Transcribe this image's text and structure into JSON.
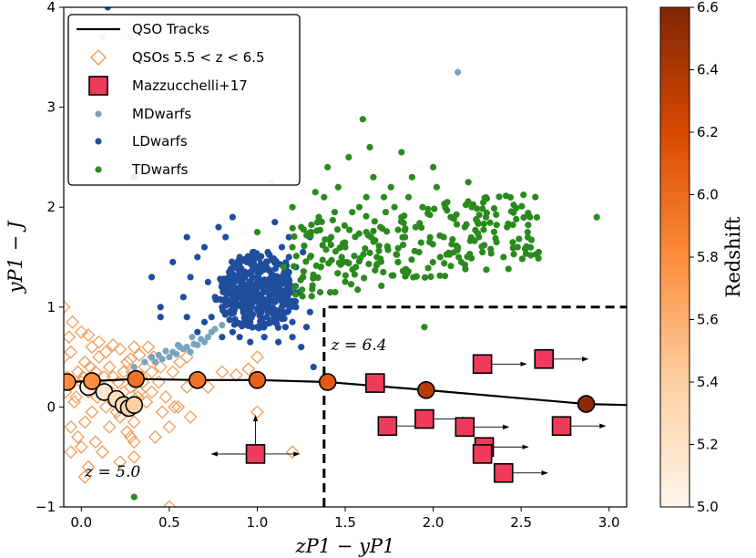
{
  "chart_data": {
    "type": "scatter",
    "xlabel": "zP1 − yP1",
    "ylabel": "yP1 − J",
    "xlim": [
      -0.1,
      3.1
    ],
    "ylim": [
      -1,
      4
    ],
    "x_ticks": [
      "0.0",
      "0.5",
      "1.0",
      "1.5",
      "2.0",
      "2.5",
      "3.0"
    ],
    "y_ticks": [
      "−1",
      "0",
      "1",
      "2",
      "3",
      "4"
    ],
    "legend": {
      "placement": "top-left",
      "entries": [
        {
          "label": "QSO Tracks",
          "marker": "line"
        },
        {
          "label": "QSOs 5.5 < z < 6.5",
          "marker": "open-diamond"
        },
        {
          "label": "Mazzucchelli+17",
          "marker": "square"
        },
        {
          "label": "MDwarfs",
          "marker": "dot"
        },
        {
          "label": "LDwarfs",
          "marker": "dot"
        },
        {
          "label": "TDwarfs",
          "marker": "dot"
        }
      ]
    },
    "colorbar": {
      "label": "Redshift",
      "range": [
        5.0,
        6.6
      ],
      "ticks": [
        "5.0",
        "5.2",
        "5.4",
        "5.6",
        "5.8",
        "6.0",
        "6.2",
        "6.4",
        "6.6"
      ]
    },
    "annotations": [
      {
        "text": "z = 6.4",
        "x": 1.42,
        "y": 0.57
      },
      {
        "text": "z = 5.0",
        "x": 0.02,
        "y": -0.7
      }
    ],
    "selection_box": {
      "x0": 1.38,
      "y_top": 1.0
    },
    "qso_track": [
      {
        "x": -0.08,
        "y": 0.25,
        "z": 5.8
      },
      {
        "x": 0.06,
        "y": 0.26,
        "z": 5.8
      },
      {
        "x": 0.31,
        "y": 0.28,
        "z": 5.95
      },
      {
        "x": 0.66,
        "y": 0.27,
        "z": 5.95
      },
      {
        "x": 1.0,
        "y": 0.27,
        "z": 6.05
      },
      {
        "x": 1.4,
        "y": 0.25,
        "z": 6.1
      },
      {
        "x": 1.96,
        "y": 0.17,
        "z": 6.35
      },
      {
        "x": 2.87,
        "y": 0.03,
        "z": 6.55
      }
    ],
    "qso_track_end": {
      "x": 3.1,
      "y": 0.02
    },
    "low_z_track": [
      {
        "x": 0.04,
        "y": 0.2,
        "z": 5.05
      },
      {
        "x": 0.13,
        "y": 0.15,
        "z": 5.15
      },
      {
        "x": 0.2,
        "y": 0.08,
        "z": 5.25
      },
      {
        "x": 0.24,
        "y": 0.02,
        "z": 5.3
      },
      {
        "x": 0.27,
        "y": -0.01,
        "z": 5.35
      },
      {
        "x": 0.3,
        "y": 0.02,
        "z": 5.4
      }
    ],
    "qsos_open_diamonds": [
      [
        -0.1,
        0.5
      ],
      [
        -0.08,
        0.3
      ],
      [
        -0.06,
        0.55
      ],
      [
        -0.04,
        0.05
      ],
      [
        -0.02,
        0.35
      ],
      [
        0.0,
        0.25
      ],
      [
        0.02,
        0.45
      ],
      [
        0.04,
        0.15
      ],
      [
        0.06,
        -0.05
      ],
      [
        0.08,
        0.35
      ],
      [
        0.1,
        0.5
      ],
      [
        0.12,
        0.2
      ],
      [
        0.14,
        0.0
      ],
      [
        0.16,
        0.4
      ],
      [
        0.18,
        0.3
      ],
      [
        0.2,
        0.1
      ],
      [
        0.22,
        -0.1
      ],
      [
        0.24,
        0.35
      ],
      [
        0.26,
        0.45
      ],
      [
        0.28,
        0.2
      ],
      [
        0.3,
        -0.15
      ],
      [
        0.32,
        0.1
      ],
      [
        0.34,
        0.3
      ],
      [
        -0.06,
        -0.2
      ],
      [
        -0.02,
        -0.3
      ],
      [
        0.02,
        -0.15
      ],
      [
        0.06,
        0.6
      ],
      [
        0.1,
        0.65
      ],
      [
        0.14,
        0.55
      ],
      [
        0.18,
        0.62
      ],
      [
        0.22,
        0.58
      ],
      [
        0.26,
        -0.25
      ],
      [
        0.3,
        -0.35
      ],
      [
        -0.07,
        0.7
      ],
      [
        -0.05,
        0.85
      ],
      [
        0.0,
        0.75
      ],
      [
        0.04,
        0.72
      ],
      [
        0.08,
        -0.35
      ],
      [
        0.12,
        -0.45
      ],
      [
        0.16,
        -0.2
      ],
      [
        0.2,
        -0.05
      ],
      [
        0.24,
        0.15
      ],
      [
        0.28,
        0.48
      ],
      [
        0.33,
        0.52
      ],
      [
        0.36,
        0.4
      ],
      [
        0.4,
        0.35
      ],
      [
        0.44,
        0.25
      ],
      [
        0.48,
        0.1
      ],
      [
        0.52,
        0.35
      ],
      [
        0.56,
        0.45
      ],
      [
        0.6,
        0.2
      ],
      [
        0.62,
        -0.1
      ],
      [
        0.46,
        -0.05
      ],
      [
        0.5,
        -0.2
      ],
      [
        0.42,
        -0.3
      ],
      [
        0.38,
        0.6
      ],
      [
        0.35,
        0.25
      ],
      [
        0.4,
        0.15
      ],
      [
        0.3,
        0.6
      ],
      [
        -0.09,
        0.15
      ],
      [
        -0.03,
        0.1
      ],
      [
        0.01,
        0.3
      ],
      [
        0.05,
        0.4
      ],
      [
        0.09,
        0.1
      ],
      [
        0.13,
        0.3
      ],
      [
        0.17,
        0.15
      ],
      [
        0.21,
        0.25
      ],
      [
        0.25,
        0.05
      ],
      [
        0.29,
        0.35
      ],
      [
        0.33,
        0.15
      ],
      [
        0.37,
        0.05
      ],
      [
        0.41,
        0.5
      ],
      [
        0.45,
        0.4
      ],
      [
        0.53,
        0.0
      ],
      [
        -0.1,
        1.0
      ],
      [
        -0.06,
        -0.45
      ],
      [
        0.0,
        -0.4
      ],
      [
        0.04,
        -0.6
      ],
      [
        0.3,
        -0.5
      ],
      [
        0.22,
        -0.55
      ],
      [
        0.28,
        -0.3
      ],
      [
        0.8,
        0.35
      ],
      [
        0.72,
        0.2
      ],
      [
        1.0,
        -0.05
      ],
      [
        1.0,
        0.5
      ],
      [
        0.95,
        0.38
      ],
      [
        1.2,
        -0.45
      ],
      [
        0.02,
        -0.7
      ],
      [
        0.5,
        -1.0
      ],
      [
        0.55,
        0.0
      ],
      [
        0.6,
        0.5
      ],
      [
        0.88,
        0.32
      ]
    ],
    "mazzucchelli": [
      {
        "x": 1.67,
        "y": 0.24,
        "arrow": false
      },
      {
        "x": 2.28,
        "y": 0.43,
        "arrow": true
      },
      {
        "x": 2.63,
        "y": 0.48,
        "arrow": true
      },
      {
        "x": 1.74,
        "y": -0.19,
        "arrow": true
      },
      {
        "x": 1.95,
        "y": -0.12,
        "arrow": true
      },
      {
        "x": 2.18,
        "y": -0.2,
        "arrow": true
      },
      {
        "x": 2.73,
        "y": -0.19,
        "arrow": true
      },
      {
        "x": 2.29,
        "y": -0.4,
        "arrow": true
      },
      {
        "x": 2.28,
        "y": -0.47,
        "arrow": false
      },
      {
        "x": 2.4,
        "y": -0.66,
        "arrow": true
      },
      {
        "x": 0.99,
        "y": -0.47,
        "arrow": false,
        "cross": true
      }
    ],
    "mdwarfs": [
      [
        0.4,
        0.5
      ],
      [
        0.44,
        0.52
      ],
      [
        0.48,
        0.56
      ],
      [
        0.52,
        0.55
      ],
      [
        0.56,
        0.6
      ],
      [
        0.6,
        0.6
      ],
      [
        0.64,
        0.63
      ],
      [
        0.68,
        0.68
      ],
      [
        0.72,
        0.7
      ],
      [
        0.74,
        0.75
      ],
      [
        0.46,
        0.48
      ],
      [
        0.5,
        0.5
      ],
      [
        0.54,
        0.53
      ],
      [
        0.58,
        0.58
      ],
      [
        0.62,
        0.55
      ],
      [
        0.66,
        0.62
      ],
      [
        0.7,
        0.65
      ],
      [
        0.76,
        0.78
      ],
      [
        0.8,
        0.82
      ],
      [
        0.36,
        0.45
      ],
      [
        0.3,
        0.4
      ],
      [
        0.42,
        0.45
      ],
      [
        0.55,
        0.62
      ],
      [
        0.63,
        0.7
      ],
      [
        0.12,
        3.7
      ],
      [
        0.28,
        3.7
      ],
      [
        1.08,
        2.25
      ],
      [
        2.14,
        3.35
      ]
    ],
    "ldwarfs": [
      [
        0.15,
        4.0
      ],
      [
        0.45,
        1.0
      ],
      [
        0.58,
        1.1
      ],
      [
        0.62,
        1.3
      ],
      [
        0.6,
        0.9
      ],
      [
        0.66,
        1.5
      ],
      [
        0.7,
        1.6
      ],
      [
        0.72,
        1.25
      ],
      [
        0.78,
        1.8
      ],
      [
        0.82,
        1.7
      ],
      [
        0.86,
        1.9
      ],
      [
        0.88,
        1.4
      ],
      [
        0.9,
        1.5
      ],
      [
        0.94,
        1.2
      ],
      [
        0.96,
        1.35
      ],
      [
        0.98,
        1.1
      ],
      [
        1.0,
        1.25
      ],
      [
        1.02,
        1.0
      ],
      [
        1.04,
        1.15
      ],
      [
        1.06,
        0.95
      ],
      [
        1.08,
        1.3
      ],
      [
        1.1,
        1.05
      ],
      [
        1.12,
        1.2
      ],
      [
        1.14,
        0.9
      ],
      [
        1.16,
        1.1
      ],
      [
        1.18,
        1.35
      ],
      [
        1.2,
        0.85
      ],
      [
        1.22,
        1.0
      ],
      [
        1.24,
        1.15
      ],
      [
        1.26,
        1.3
      ],
      [
        1.28,
        0.8
      ],
      [
        1.3,
        0.95
      ],
      [
        1.0,
        0.8
      ],
      [
        0.96,
        0.85
      ],
      [
        0.92,
        0.95
      ],
      [
        0.88,
        1.05
      ],
      [
        0.84,
        1.15
      ],
      [
        0.8,
        1.0
      ],
      [
        0.76,
        1.1
      ],
      [
        0.74,
        0.9
      ],
      [
        0.9,
        1.3
      ],
      [
        0.94,
        1.45
      ],
      [
        0.98,
        1.55
      ],
      [
        1.02,
        1.4
      ],
      [
        1.06,
        1.55
      ],
      [
        1.1,
        1.45
      ],
      [
        1.14,
        1.6
      ],
      [
        1.18,
        1.5
      ],
      [
        1.22,
        1.4
      ],
      [
        1.26,
        1.55
      ],
      [
        0.86,
        0.75
      ],
      [
        0.9,
        0.7
      ],
      [
        0.96,
        0.65
      ],
      [
        1.04,
        0.7
      ],
      [
        1.12,
        0.65
      ],
      [
        1.2,
        0.7
      ],
      [
        0.8,
        1.25
      ],
      [
        0.84,
        1.35
      ],
      [
        0.98,
        1.2
      ],
      [
        1.04,
        1.25
      ],
      [
        1.08,
        1.1
      ],
      [
        0.92,
        1.1
      ],
      [
        0.96,
        1.0
      ],
      [
        1.0,
        1.05
      ],
      [
        1.06,
        1.0
      ],
      [
        1.14,
        1.0
      ],
      [
        1.16,
        0.8
      ],
      [
        0.8,
        0.7
      ],
      [
        0.7,
        0.85
      ],
      [
        0.66,
        0.75
      ],
      [
        0.45,
        0.9
      ],
      [
        0.3,
        2.3
      ],
      [
        1.3,
        1.7
      ],
      [
        1.25,
        0.6
      ],
      [
        1.32,
        0.4
      ],
      [
        0.4,
        1.3
      ],
      [
        0.6,
        1.7
      ],
      [
        0.52,
        1.45
      ],
      [
        1.18,
        1.7
      ],
      [
        1.1,
        1.85
      ]
    ],
    "tdwarfs": [
      [
        1.15,
        1.4
      ],
      [
        1.2,
        1.6
      ],
      [
        1.25,
        1.8
      ],
      [
        1.3,
        1.5
      ],
      [
        1.35,
        1.9
      ],
      [
        1.38,
        2.1
      ],
      [
        1.42,
        1.7
      ],
      [
        1.46,
        2.2
      ],
      [
        1.5,
        1.6
      ],
      [
        1.54,
        1.95
      ],
      [
        1.58,
        2.0
      ],
      [
        1.62,
        1.75
      ],
      [
        1.66,
        2.3
      ],
      [
        1.7,
        1.8
      ],
      [
        1.72,
        2.1
      ],
      [
        1.74,
        1.6
      ],
      [
        1.78,
        2.0
      ],
      [
        1.82,
        1.9
      ],
      [
        1.86,
        2.1
      ],
      [
        1.9,
        1.8
      ],
      [
        1.94,
        2.0
      ],
      [
        1.98,
        1.65
      ],
      [
        2.02,
        2.2
      ],
      [
        2.06,
        1.7
      ],
      [
        2.1,
        1.9
      ],
      [
        2.14,
        1.6
      ],
      [
        2.18,
        1.8
      ],
      [
        2.22,
        2.0
      ],
      [
        2.26,
        1.7
      ],
      [
        2.3,
        1.9
      ],
      [
        2.36,
        1.65
      ],
      [
        2.42,
        1.8
      ],
      [
        2.48,
        1.6
      ],
      [
        2.55,
        1.9
      ],
      [
        2.6,
        1.55
      ],
      [
        1.4,
        2.4
      ],
      [
        1.52,
        2.5
      ],
      [
        1.64,
        2.6
      ],
      [
        1.76,
        2.2
      ],
      [
        1.88,
        2.3
      ],
      [
        2.0,
        2.4
      ],
      [
        1.6,
        2.88
      ],
      [
        1.82,
        2.55
      ],
      [
        1.95,
        0.8
      ],
      [
        2.93,
        1.9
      ],
      [
        1.2,
        2.0
      ],
      [
        1.26,
        1.3
      ],
      [
        1.36,
        1.4
      ],
      [
        1.48,
        1.5
      ],
      [
        1.56,
        1.4
      ],
      [
        1.68,
        1.5
      ],
      [
        1.8,
        1.45
      ],
      [
        1.92,
        1.55
      ],
      [
        2.04,
        1.5
      ],
      [
        2.16,
        1.45
      ],
      [
        2.28,
        1.55
      ],
      [
        2.4,
        1.5
      ],
      [
        1.44,
        1.95
      ],
      [
        1.62,
        2.1
      ],
      [
        1.84,
        1.7
      ],
      [
        2.08,
        2.05
      ],
      [
        2.2,
        2.25
      ],
      [
        0.3,
        -0.9
      ],
      [
        1.0,
        1.75
      ],
      [
        1.33,
        2.15
      ],
      [
        1.73,
        1.95
      ]
    ]
  }
}
